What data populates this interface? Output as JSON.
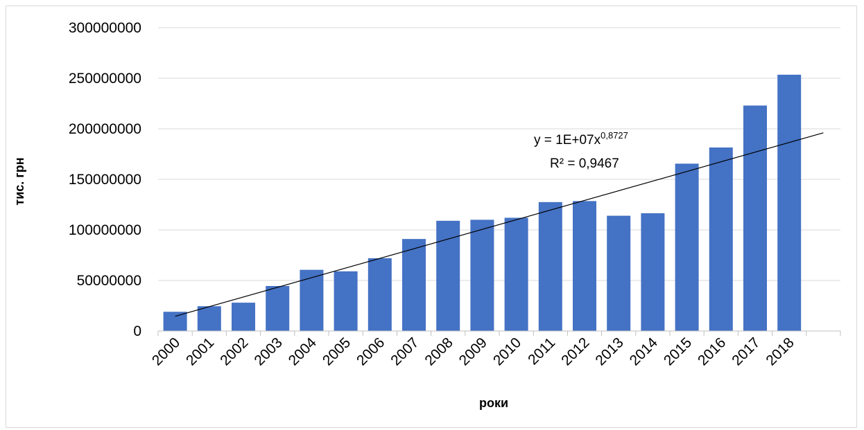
{
  "chart_data": {
    "type": "bar",
    "categories": [
      "2000",
      "2001",
      "2002",
      "2003",
      "2004",
      "2005",
      "2006",
      "2007",
      "2008",
      "2009",
      "2010",
      "2011",
      "2012",
      "2013",
      "2014",
      "2015",
      "2016",
      "2017",
      "2018"
    ],
    "series": [
      {
        "values": [
          19000000,
          24500000,
          28000000,
          44500000,
          60500000,
          59000000,
          72000000,
          91000000,
          109000000,
          110000000,
          112000000,
          127500000,
          128500000,
          114000000,
          116500000,
          165500000,
          181500000,
          223000000,
          253500000
        ],
        "color": "#4472c4"
      }
    ],
    "ylim": [
      0,
      300000000
    ],
    "yticks": [
      "0",
      "50000000",
      "100000000",
      "150000000",
      "200000000",
      "250000000",
      "300000000"
    ],
    "xlabel": "роки",
    "ylabel": "тис. грн",
    "grid": true,
    "trendline": {
      "type": "power",
      "equation_base": "y = 1E+07x",
      "equation_exponent": "0,8727",
      "r_squared": "R² = 0,9467",
      "start_value": 14500000,
      "end_value": 196000000,
      "color": "#000000"
    }
  }
}
